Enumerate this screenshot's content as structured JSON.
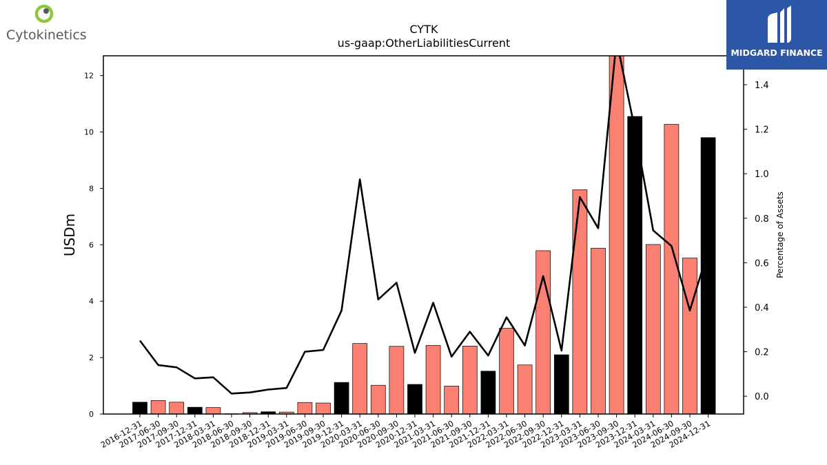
{
  "header": {
    "title": "CYTK",
    "subtitle": "us-gaap:OtherLiabilitiesCurrent"
  },
  "logos": {
    "left_text": "Cytokinetics",
    "right_text": "MIDGARD FINANCE"
  },
  "colors": {
    "bar_annual": "#000000",
    "bar_quarter": "#fa8072",
    "line": "#000000",
    "brand_blue": "#2c56a6",
    "cytokinetics_green": "#8dc63f",
    "cytokinetics_gray": "#555a5e"
  },
  "chart_data": {
    "type": "bar",
    "title": "CYTK",
    "subtitle": "us-gaap:OtherLiabilitiesCurrent",
    "ylabel": "USDm",
    "y2label": "Percentage of Assets",
    "ylim": [
      0,
      12.7
    ],
    "y2lim": [
      -0.08,
      1.53
    ],
    "yticks": [
      0,
      2,
      4,
      6,
      8,
      10,
      12
    ],
    "y2ticks": [
      0.0,
      0.2,
      0.4,
      0.6,
      0.8,
      1.0,
      1.2,
      1.4
    ],
    "grid": false,
    "categories": [
      "2016-12-31",
      "2017-06-30",
      "2017-09-30",
      "2017-12-31",
      "2018-03-31",
      "2018-06-30",
      "2018-09-30",
      "2018-12-31",
      "2019-03-31",
      "2019-06-30",
      "2019-09-30",
      "2019-12-31",
      "2020-03-31",
      "2020-06-30",
      "2020-09-30",
      "2020-12-31",
      "2021-03-31",
      "2021-06-30",
      "2021-09-30",
      "2021-12-31",
      "2022-03-31",
      "2022-06-30",
      "2022-09-30",
      "2022-12-31",
      "2023-03-31",
      "2023-06-30",
      "2023-09-30",
      "2023-12-31",
      "2024-03-31",
      "2024-06-30",
      "2024-09-30",
      "2024-12-31"
    ],
    "series": [
      {
        "type": "bar",
        "axis": "left",
        "values": [
          0.42,
          0.48,
          0.42,
          0.24,
          0.23,
          0.01,
          0.05,
          0.08,
          0.07,
          0.41,
          0.39,
          1.12,
          2.5,
          1.02,
          2.4,
          1.05,
          2.43,
          0.99,
          2.41,
          1.52,
          3.04,
          1.74,
          5.79,
          2.1,
          7.95,
          5.88,
          12.9,
          10.55,
          6.01,
          10.27,
          5.53,
          9.8
        ],
        "fills": [
          "black",
          "salmon",
          "salmon",
          "black",
          "salmon",
          "salmon",
          "salmon",
          "black",
          "salmon",
          "salmon",
          "salmon",
          "black",
          "salmon",
          "salmon",
          "salmon",
          "black",
          "salmon",
          "salmon",
          "salmon",
          "black",
          "salmon",
          "salmon",
          "salmon",
          "black",
          "salmon",
          "salmon",
          "salmon",
          "black",
          "salmon",
          "salmon",
          "salmon",
          "black"
        ]
      },
      {
        "type": "line",
        "axis": "right",
        "values": [
          0.25,
          0.14,
          0.13,
          0.08,
          0.085,
          0.012,
          0.017,
          0.03,
          0.037,
          0.2,
          0.208,
          0.385,
          0.975,
          0.435,
          0.51,
          0.195,
          0.42,
          0.178,
          0.29,
          0.183,
          0.355,
          0.228,
          0.54,
          0.205,
          0.895,
          0.755,
          1.6,
          1.2,
          0.745,
          0.675,
          0.385,
          0.655
        ]
      }
    ]
  }
}
